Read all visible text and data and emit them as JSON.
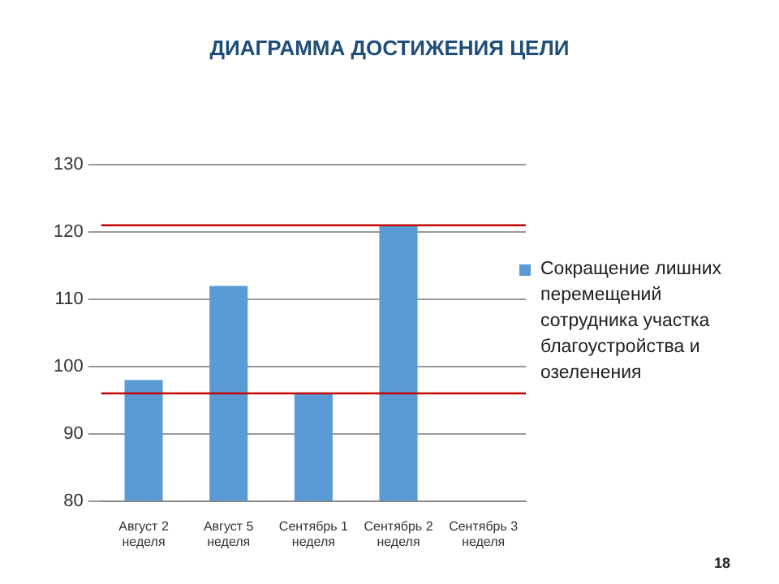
{
  "chart_data": {
    "type": "bar",
    "title": "ДИАГРАММА ДОСТИЖЕНИЯ ЦЕЛИ",
    "categories": [
      "Август 2 неделя",
      "Август 5 неделя",
      "Сентябрь 1 неделя",
      "Сентябрь 2 неделя",
      "Сентябрь 3 неделя"
    ],
    "series": [
      {
        "name": "Сокращение лишних перемещений сотрудника участка благоустройства и озеленения",
        "color": "#5b9bd5",
        "values": [
          98,
          112,
          96,
          121,
          null
        ]
      }
    ],
    "ylim": [
      80,
      130
    ],
    "yticks": [
      80,
      90,
      100,
      110,
      120,
      130
    ],
    "grid": "y",
    "legend": "right",
    "ref_lines": [
      {
        "axis": "y",
        "value": 121,
        "color": "#c00000"
      },
      {
        "axis": "y",
        "value": 96,
        "color": "#c00000"
      }
    ],
    "annotations": [
      "18"
    ]
  }
}
